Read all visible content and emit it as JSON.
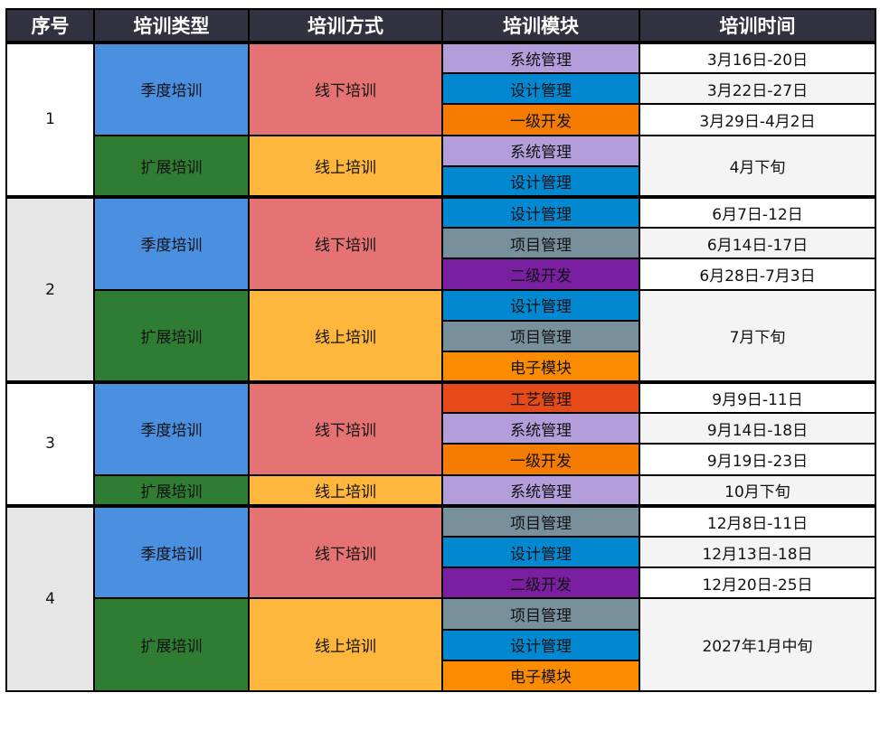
{
  "headers": [
    "序号",
    "培训类型",
    "培训方式",
    "培训模块",
    "培训时间"
  ],
  "colors": {
    "header_bg": "#32313f",
    "seasonal": "#4a8fe0",
    "offline": "#e57373",
    "extended": "#2e7d32",
    "online": "#ffb63c",
    "index_alt_bg": "#e6e6e6"
  },
  "groups": [
    {
      "index": "1",
      "bg": "#ffffff",
      "types": [
        {
          "type": "季度培训",
          "mode": "线下培训",
          "modules": [
            {
              "name": "系统管理",
              "color": "#b39ddb"
            },
            {
              "name": "设计管理",
              "color": "#0288d1"
            },
            {
              "name": "一级开发",
              "color": "#f57c00"
            }
          ],
          "times": [
            {
              "text": "3月16日-20日",
              "span": 1
            },
            {
              "text": "3月22日-27日",
              "span": 1
            },
            {
              "text": "3月29日-4月2日",
              "span": 1
            }
          ]
        },
        {
          "type": "扩展培训",
          "mode": "线上培训",
          "modules": [
            {
              "name": "系统管理",
              "color": "#b39ddb"
            },
            {
              "name": "设计管理",
              "color": "#0288d1"
            }
          ],
          "times": [
            {
              "text": "4月下旬",
              "span": 2
            }
          ]
        }
      ]
    },
    {
      "index": "2",
      "bg": "#e6e6e6",
      "types": [
        {
          "type": "季度培训",
          "mode": "线下培训",
          "modules": [
            {
              "name": "设计管理",
              "color": "#0288d1"
            },
            {
              "name": "项目管理",
              "color": "#78909c"
            },
            {
              "name": "二级开发",
              "color": "#7b1fa2"
            }
          ],
          "times": [
            {
              "text": "6月7日-12日",
              "span": 1
            },
            {
              "text": "6月14日-17日",
              "span": 1
            },
            {
              "text": "6月28日-7月3日",
              "span": 1
            }
          ]
        },
        {
          "type": "扩展培训",
          "mode": "线上培训",
          "modules": [
            {
              "name": "设计管理",
              "color": "#0288d1"
            },
            {
              "name": "项目管理",
              "color": "#78909c"
            },
            {
              "name": "电子模块",
              "color": "#fb8c00"
            }
          ],
          "times": [
            {
              "text": "7月下旬",
              "span": 3
            }
          ]
        }
      ]
    },
    {
      "index": "3",
      "bg": "#ffffff",
      "types": [
        {
          "type": "季度培训",
          "mode": "线下培训",
          "modules": [
            {
              "name": "工艺管理",
              "color": "#e64a19"
            },
            {
              "name": "系统管理",
              "color": "#b39ddb"
            },
            {
              "name": "一级开发",
              "color": "#f57c00"
            }
          ],
          "times": [
            {
              "text": "9月9日-11日",
              "span": 1
            },
            {
              "text": "9月14日-18日",
              "span": 1
            },
            {
              "text": "9月19日-23日",
              "span": 1
            }
          ]
        },
        {
          "type": "扩展培训",
          "mode": "线上培训",
          "modules": [
            {
              "name": "系统管理",
              "color": "#b39ddb"
            }
          ],
          "times": [
            {
              "text": "10月下旬",
              "span": 1
            }
          ]
        }
      ]
    },
    {
      "index": "4",
      "bg": "#e6e6e6",
      "types": [
        {
          "type": "季度培训",
          "mode": "线下培训",
          "modules": [
            {
              "name": "项目管理",
              "color": "#78909c"
            },
            {
              "name": "设计管理",
              "color": "#0288d1"
            },
            {
              "name": "二级开发",
              "color": "#7b1fa2"
            }
          ],
          "times": [
            {
              "text": "12月8日-11日",
              "span": 1
            },
            {
              "text": "12月13日-18日",
              "span": 1
            },
            {
              "text": "12月20日-25日",
              "span": 1
            }
          ]
        },
        {
          "type": "扩展培训",
          "mode": "线上培训",
          "modules": [
            {
              "name": "项目管理",
              "color": "#78909c"
            },
            {
              "name": "设计管理",
              "color": "#0288d1"
            },
            {
              "name": "电子模块",
              "color": "#fb8c00"
            }
          ],
          "times": [
            {
              "text": "2027年1月中旬",
              "span": 3
            }
          ]
        }
      ]
    }
  ]
}
